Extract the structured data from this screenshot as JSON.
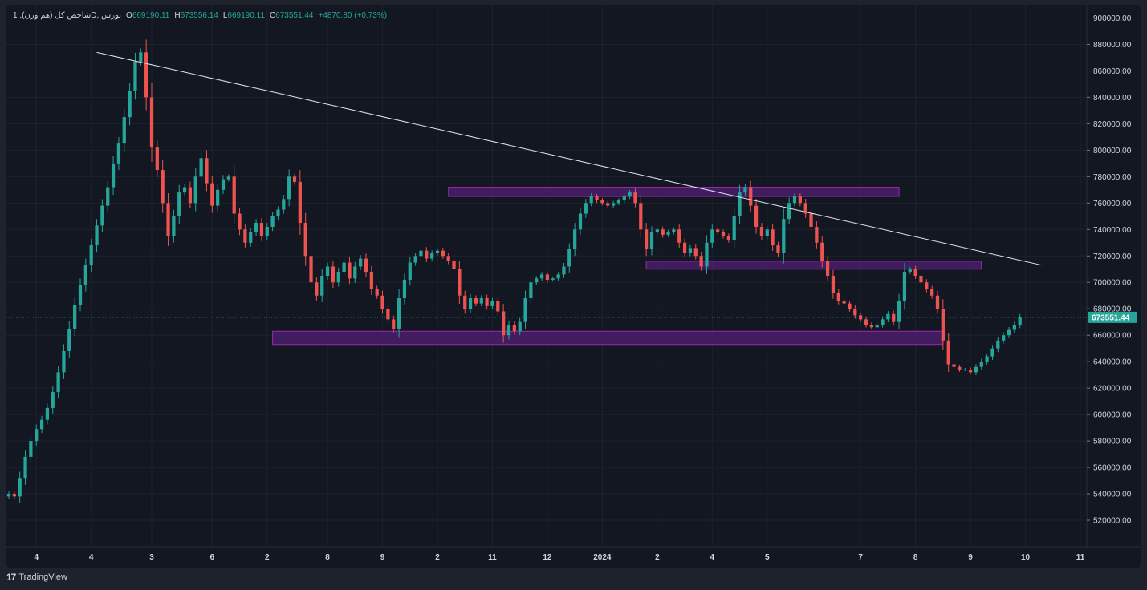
{
  "legend": {
    "symbol": "شاخص کل (هم وزن), 1D, بورس",
    "o_label": "O",
    "o_value": "669190.11",
    "h_label": "H",
    "h_value": "673556.14",
    "l_label": "L",
    "l_value": "669190.11",
    "c_label": "C",
    "c_value": "673551.44",
    "change": "+4870.80 (+0.73%)"
  },
  "footer": {
    "logo_mark": "17",
    "brand": "TradingView"
  },
  "colors": {
    "up": "#26a69a",
    "down": "#ef5350",
    "zone_fill": "#4a1d6a",
    "zone_border": "#9c27b0",
    "trendline": "#e0e3eb",
    "last_price": "#26a69a",
    "background": "#131722",
    "grid": "#1e222d"
  },
  "chart_data": {
    "type": "candlestick",
    "ylim": [
      500000,
      910000
    ],
    "y_ticks": [
      "900000.00",
      "880000.00",
      "860000.00",
      "840000.00",
      "820000.00",
      "800000.00",
      "780000.00",
      "760000.00",
      "740000.00",
      "720000.00",
      "700000.00",
      "680000.00",
      "660000.00",
      "640000.00",
      "620000.00",
      "600000.00",
      "580000.00",
      "560000.00",
      "540000.00",
      "520000.00"
    ],
    "x_range": [
      0,
      195
    ],
    "x_ticks": [
      {
        "label": "4",
        "t": 5
      },
      {
        "label": "4",
        "t": 15
      },
      {
        "label": "3",
        "t": 26
      },
      {
        "label": "6",
        "t": 37
      },
      {
        "label": "2",
        "t": 47
      },
      {
        "label": "8",
        "t": 58
      },
      {
        "label": "9",
        "t": 68
      },
      {
        "label": "2",
        "t": 78
      },
      {
        "label": "11",
        "t": 88
      },
      {
        "label": "12",
        "t": 98
      },
      {
        "label": "2024",
        "t": 108
      },
      {
        "label": "2",
        "t": 118
      },
      {
        "label": "4",
        "t": 128
      },
      {
        "label": "5",
        "t": 138
      },
      {
        "label": "7",
        "t": 155
      },
      {
        "label": "8",
        "t": 165
      },
      {
        "label": "9",
        "t": 175
      },
      {
        "label": "10",
        "t": 185
      },
      {
        "label": "11",
        "t": 195
      }
    ],
    "last_price": 673551.44,
    "last_price_label": "673551.44",
    "zones": [
      {
        "t1": 80,
        "t2": 162,
        "top": 772000,
        "bottom": 765000
      },
      {
        "t1": 116,
        "t2": 177,
        "top": 716000,
        "bottom": 710000
      },
      {
        "t1": 48,
        "t2": 170,
        "top": 663000,
        "bottom": 653000
      }
    ],
    "trendline": {
      "t1": 16,
      "p1": 874000,
      "t2": 188,
      "p2": 713000
    },
    "closes": [
      540000,
      538000,
      552000,
      568000,
      580000,
      589000,
      596000,
      605000,
      617000,
      632000,
      648000,
      665000,
      683000,
      698000,
      713000,
      728000,
      743000,
      758000,
      772000,
      790000,
      805000,
      825000,
      845000,
      867000,
      874000,
      840000,
      802000,
      785000,
      760000,
      735000,
      750000,
      768000,
      772000,
      760000,
      780000,
      794000,
      775000,
      758000,
      770000,
      778000,
      780000,
      752000,
      740000,
      730000,
      738000,
      745000,
      735000,
      742000,
      750000,
      755000,
      763000,
      780000,
      776000,
      745000,
      720000,
      700000,
      690000,
      705000,
      712000,
      700000,
      708000,
      715000,
      703000,
      712000,
      718000,
      708000,
      695000,
      690000,
      680000,
      672000,
      665000,
      688000,
      702000,
      715000,
      720000,
      724000,
      718000,
      722000,
      724000,
      720000,
      716000,
      710000,
      690000,
      680000,
      688000,
      684000,
      688000,
      682000,
      686000,
      678000,
      660000,
      668000,
      663000,
      670000,
      688000,
      700000,
      703000,
      706000,
      702000,
      703000,
      706000,
      712000,
      725000,
      740000,
      752000,
      760000,
      765000,
      762000,
      760000,
      758000,
      760000,
      762000,
      765000,
      768000,
      760000,
      740000,
      725000,
      738000,
      740000,
      736000,
      738000,
      740000,
      730000,
      722000,
      726000,
      720000,
      712000,
      730000,
      740000,
      738000,
      735000,
      732000,
      750000,
      768000,
      772000,
      758000,
      742000,
      735000,
      740000,
      728000,
      722000,
      748000,
      760000,
      765000,
      760000,
      752000,
      742000,
      730000,
      716000,
      705000,
      692000,
      686000,
      684000,
      680000,
      675000,
      672000,
      668000,
      666000,
      668000,
      672000,
      676000,
      670000,
      686000,
      708000,
      710000,
      705000,
      700000,
      695000,
      690000,
      680000,
      656000,
      638000,
      636000,
      634000,
      634000,
      632000,
      636000,
      640000,
      644000,
      650000,
      656000,
      660000,
      664000,
      668000,
      673551
    ]
  }
}
